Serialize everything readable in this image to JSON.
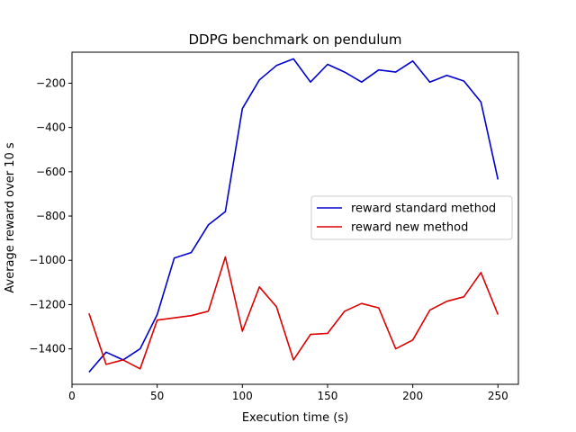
{
  "chart_data": {
    "type": "line",
    "title": "DDPG benchmark on pendulum",
    "xlabel": "Execution time (s)",
    "ylabel": "Average reward over 10 s",
    "xlim": [
      0,
      262
    ],
    "ylim": [
      -1560,
      -60
    ],
    "xticks": [
      0,
      50,
      100,
      150,
      200,
      250
    ],
    "yticks": [
      -1400,
      -1200,
      -1000,
      -800,
      -600,
      -400,
      -200
    ],
    "xtick_labels": [
      "0",
      "50",
      "100",
      "150",
      "200",
      "250"
    ],
    "ytick_labels": [
      "−1400",
      "−1200",
      "−1000",
      "−800",
      "−600",
      "−400",
      "−200"
    ],
    "grid": false,
    "legend_position": "center-right",
    "x": [
      10,
      20,
      30,
      40,
      50,
      60,
      70,
      80,
      90,
      100,
      110,
      120,
      130,
      140,
      150,
      160,
      170,
      180,
      190,
      200,
      210,
      220,
      230,
      240,
      250
    ],
    "series": [
      {
        "name": "reward standard method",
        "color": "#0000cc",
        "values": [
          -1505,
          -1415,
          -1450,
          -1400,
          -1245,
          -990,
          -965,
          -840,
          -780,
          -315,
          -185,
          -120,
          -90,
          -195,
          -115,
          -150,
          -195,
          -140,
          -150,
          -100,
          -195,
          -165,
          -190,
          -285,
          -635
        ]
      },
      {
        "name": "reward new method",
        "color": "#dd0000",
        "values": [
          -1240,
          -1470,
          -1450,
          -1490,
          -1270,
          -1260,
          -1250,
          -1230,
          -985,
          -1320,
          -1120,
          -1210,
          -1450,
          -1335,
          -1330,
          -1230,
          -1195,
          -1215,
          -1400,
          -1360,
          -1225,
          -1185,
          -1165,
          -1055,
          -1245
        ]
      }
    ]
  }
}
